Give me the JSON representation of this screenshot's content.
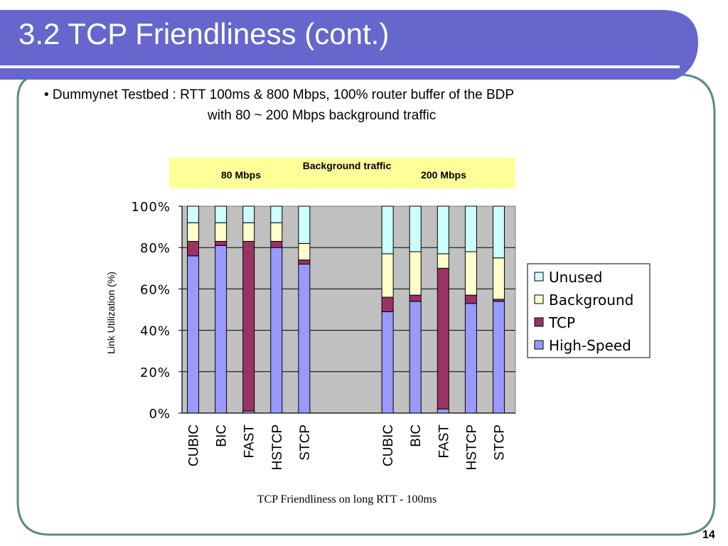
{
  "slide": {
    "title": "3.2 TCP Friendliness (cont.)",
    "bullet_line1": "• Dummynet Testbed : RTT 100ms & 800 Mbps, 100% router buffer of the BDP",
    "bullet_line2": "with 80 ~ 200 Mbps background traffic",
    "page_number": "14"
  },
  "colors": {
    "title_bar": "#6666cc",
    "frame_border": "#5b8a88",
    "banner_fill": "#ffff99",
    "plot_bg": "#c0c0c0",
    "high_speed": "#9999ff",
    "tcp": "#993366",
    "background": "#ffffcc",
    "unused": "#ccffff"
  },
  "chart_data": {
    "type": "bar",
    "stacked": true,
    "percent": true,
    "banner": {
      "title": "Background traffic",
      "group_labels": [
        "80 Mbps",
        "200 Mbps"
      ]
    },
    "categories": [
      "CUBIC",
      "BIC",
      "FAST",
      "HSTCP",
      "STCP",
      "CUBIC",
      "BIC",
      "FAST",
      "HSTCP",
      "STCP"
    ],
    "groups": [
      {
        "label": "80 Mbps",
        "category_indices": [
          0,
          1,
          2,
          3,
          4
        ]
      },
      {
        "label": "200 Mbps",
        "category_indices": [
          5,
          6,
          7,
          8,
          9
        ]
      }
    ],
    "series": [
      {
        "name": "High-Speed",
        "values": [
          76,
          81,
          1,
          80,
          72,
          49,
          54,
          2,
          53,
          54
        ]
      },
      {
        "name": "TCP",
        "values": [
          7,
          2,
          82,
          3,
          2,
          7,
          3,
          68,
          4,
          1
        ]
      },
      {
        "name": "Background",
        "values": [
          9,
          9,
          9,
          9,
          8,
          21,
          21,
          7,
          21,
          20
        ]
      },
      {
        "name": "Unused",
        "values": [
          8,
          8,
          8,
          8,
          18,
          23,
          22,
          23,
          22,
          25
        ]
      }
    ],
    "legend_order": [
      "Unused",
      "Background",
      "TCP",
      "High-Speed"
    ],
    "legend_position": "right",
    "ylim": [
      0,
      100
    ],
    "yticks": [
      "0%",
      "20%",
      "40%",
      "60%",
      "80%",
      "100%"
    ],
    "ylabel": "Link Utilization (%)",
    "caption": "TCP Friendliness on long RTT - 100ms",
    "grid": true
  }
}
